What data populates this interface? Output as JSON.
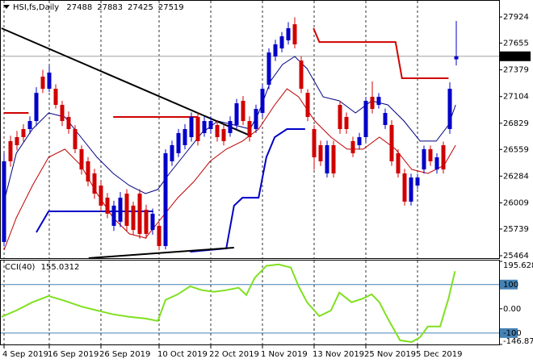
{
  "chart_data": {
    "type": "candlestick",
    "title": "HSI,fs,Daily",
    "categories": [
      "4 Sep 2019",
      null,
      null,
      null,
      null,
      null,
      null,
      "16 Sep 2019",
      null,
      null,
      null,
      null,
      null,
      null,
      null,
      "26 Sep 2019",
      null,
      null,
      null,
      null,
      null,
      null,
      null,
      null,
      "10 Oct 2019",
      null,
      null,
      null,
      null,
      null,
      null,
      null,
      "22 Oct 2019",
      null,
      null,
      null,
      null,
      null,
      null,
      null,
      "1 Nov 2019",
      null,
      null,
      null,
      null,
      null,
      null,
      null,
      "13 Nov 2019",
      null,
      null,
      null,
      null,
      null,
      null,
      null,
      "25 Nov 2019",
      null,
      null,
      null,
      null,
      null,
      null,
      null,
      "5 Dec 2019",
      null,
      null,
      null,
      null,
      null,
      null
    ],
    "open": [
      25606,
      26645,
      26686,
      26769,
      26769,
      26852,
      27309,
      27184,
      27184,
      27018,
      26894,
      26769,
      26562,
      26437,
      26312,
      26187,
      26062,
      25772,
      25814,
      26104,
      25980,
      26104,
      25938,
      25730,
      25772,
      25564,
      26437,
      26520,
      26603,
      26686,
      26894,
      26728,
      26769,
      26811,
      26769,
      26728,
      26811,
      27060,
      26852,
      26769,
      26935,
      27226,
      27517,
      27600,
      27683,
      27849,
      27475,
      27142,
      26769,
      26603,
      26312,
      26603,
      27018,
      26894,
      26645,
      26603,
      26686,
      27101,
      27018,
      26811,
      26811,
      26520,
      26312,
      26021,
      26187,
      26353,
      26562,
      26353,
      26603,
      26769,
      27488
    ],
    "high": [
      26520,
      26700,
      26750,
      26820,
      26900,
      27200,
      27380,
      27420,
      27230,
      27060,
      26950,
      26810,
      26600,
      26480,
      26360,
      26230,
      26110,
      26030,
      26120,
      26150,
      26020,
      26150,
      25990,
      25950,
      25810,
      26560,
      26650,
      26770,
      26820,
      26940,
      26940,
      26900,
      26900,
      26860,
      26810,
      26900,
      27080,
      27110,
      26900,
      27020,
      27230,
      27600,
      27690,
      27770,
      27870,
      27920,
      27520,
      27180,
      26810,
      26650,
      26650,
      26650,
      27060,
      26940,
      26690,
      26730,
      27100,
      27260,
      27140,
      26980,
      26860,
      26560,
      26360,
      26310,
      26310,
      26600,
      26600,
      26520,
      26640,
      27250,
      27883
    ],
    "low": [
      25560,
      26380,
      26550,
      26640,
      26720,
      26800,
      27140,
      27150,
      26980,
      26800,
      26720,
      26520,
      26300,
      26180,
      26050,
      25920,
      25850,
      25720,
      25760,
      25720,
      25680,
      25640,
      25640,
      25680,
      25520,
      25530,
      26390,
      26480,
      26560,
      26640,
      26600,
      26690,
      26720,
      26640,
      26600,
      26690,
      26770,
      26810,
      26640,
      26730,
      26890,
      27180,
      27470,
      27560,
      27640,
      27600,
      27140,
      26850,
      26350,
      26390,
      26270,
      26270,
      26720,
      26720,
      26480,
      26560,
      26640,
      26930,
      26980,
      26770,
      26390,
      26270,
      25980,
      25980,
      26150,
      26310,
      26390,
      26310,
      26310,
      26720,
      27425
    ],
    "close": [
      26437,
      26437,
      26603,
      26686,
      26852,
      27142,
      27184,
      27351,
      27018,
      26852,
      26769,
      26562,
      26353,
      26229,
      26104,
      25980,
      25897,
      25980,
      26062,
      25772,
      25730,
      25689,
      25689,
      25897,
      25564,
      26520,
      26603,
      26728,
      26769,
      26894,
      26645,
      26852,
      26852,
      26686,
      26645,
      26852,
      27035,
      26852,
      26686,
      26977,
      27184,
      27558,
      27642,
      27725,
      27808,
      27642,
      27184,
      26894,
      26478,
      26437,
      26603,
      26312,
      26769,
      26769,
      26520,
      26686,
      27060,
      26977,
      27101,
      26935,
      26437,
      26312,
      26021,
      26270,
      26270,
      26562,
      26437,
      26478,
      26353,
      27184,
      27519
    ],
    "up_color": "#0000c8",
    "down_color": "#d00000",
    "ylim": [
      25439,
      28099
    ],
    "yticks": [
      27924,
      27655,
      27379,
      27104,
      26829,
      26559,
      26284,
      26009,
      25739,
      25464
    ],
    "lines": [
      {
        "color": "#000080",
        "width": 1,
        "x": [
          0,
          1.9,
          4.4,
          6.9,
          9.4,
          11.9,
          14.4,
          16.9,
          19.4,
          21.9,
          23.8,
          25.6,
          28.1,
          30.6,
          33.1,
          35.6,
          38.1,
          39.4,
          41.3,
          43.1,
          45,
          46.9,
          49.4,
          51.9,
          54.4,
          56.9,
          59.4,
          61.9,
          64.4,
          66.9,
          68.8,
          69.9
        ],
        "values": [
          26021,
          26520,
          26769,
          26935,
          26894,
          26686,
          26478,
          26312,
          26187,
          26104,
          26146,
          26312,
          26520,
          26728,
          26852,
          26811,
          26769,
          26935,
          27268,
          27434,
          27517,
          27392,
          27101,
          27060,
          26935,
          27060,
          27018,
          26852,
          26645,
          26645,
          26811,
          27018
        ]
      },
      {
        "color": "#c00000",
        "width": 1,
        "x": [
          0,
          1.9,
          4.4,
          6.9,
          9.4,
          11.9,
          14.4,
          16.9,
          19.4,
          21.9,
          24.4,
          26.9,
          29.4,
          31.9,
          34.4,
          36.9,
          39.4,
          41.9,
          43.8,
          45.6,
          48.1,
          50.6,
          53.1,
          55.6,
          58.1,
          60.6,
          63.1,
          65.6,
          68.1,
          69.9
        ],
        "values": [
          25522,
          25855,
          26187,
          26478,
          26562,
          26395,
          26104,
          25855,
          25689,
          25647,
          25855,
          26062,
          26229,
          26437,
          26562,
          26645,
          26769,
          27018,
          27184,
          27101,
          26852,
          26686,
          26562,
          26562,
          26686,
          26562,
          26353,
          26312,
          26395,
          26603
        ]
      },
      {
        "color": "#d00000",
        "width": 2,
        "x": [
          0,
          3.8,
          4,
          16.9,
          30,
          31,
          47.9,
          48.8,
          60.6,
          61.6,
          68.8
        ],
        "values": [
          26935,
          26935,
          null,
          26894,
          26894,
          null,
          27808,
          27666,
          27666,
          27293,
          27293
        ]
      },
      {
        "color": "#0000c8",
        "width": 2,
        "x": [
          5,
          6.9,
          23.1,
          24,
          28.8,
          34.4,
          35.6,
          36.9,
          39.4,
          40.6,
          41.9,
          43.8,
          46.6
        ],
        "values": [
          25705,
          25921,
          25921,
          null,
          25505,
          25539,
          25979,
          26062,
          26062,
          26478,
          26686,
          26769,
          26769
        ]
      },
      {
        "color": "#000000",
        "width": 2,
        "x": [
          -0.4,
          38.1
        ],
        "values": [
          27808,
          26702
        ]
      },
      {
        "color": "#000000",
        "width": 2,
        "x": [
          13.1,
          35.6
        ],
        "values": [
          25439,
          25547
        ]
      }
    ],
    "indicator": {
      "label": "CCI(40)",
      "color": "#80e020",
      "level_color": "#4682b4",
      "x": [
        -0.4,
        1.9,
        4.4,
        6.9,
        9.4,
        11.9,
        14.4,
        16.9,
        19.4,
        21.9,
        23.8,
        25,
        26.9,
        28.8,
        30.6,
        32.5,
        34.4,
        36.3,
        37.5,
        38.8,
        40.6,
        42.5,
        44.4,
        45.6,
        46.9,
        48.8,
        50.6,
        51.9,
        53.8,
        55.6,
        56.9,
        58.1,
        59.4,
        61.3,
        63.1,
        64.4,
        65.6,
        67.5,
        68.8,
        69.8
      ],
      "values": [
        -33,
        -7,
        27,
        53,
        33,
        10,
        -7,
        -23,
        -33,
        -40,
        -50,
        37,
        60,
        93,
        77,
        70,
        77,
        87,
        57,
        127,
        177,
        183,
        170,
        93,
        27,
        -30,
        -7,
        67,
        27,
        43,
        60,
        27,
        -40,
        -130,
        -137,
        -117,
        -73,
        -73,
        43,
        155.0312
      ],
      "ylim": [
        -146.876,
        195.6284
      ],
      "yticks": [
        195.6284,
        100,
        {
          "value": 0,
          "label": "0.00"
        },
        -100,
        -146.876
      ]
    }
  }
}
